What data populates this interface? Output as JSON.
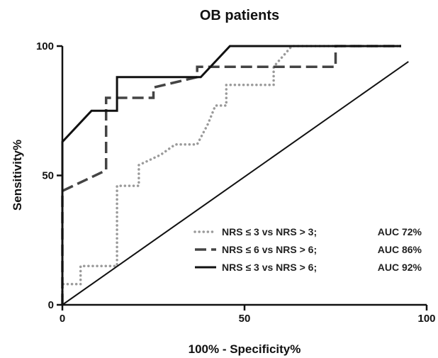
{
  "chart_data": {
    "type": "line",
    "title": "OB patients",
    "xlabel": "100% - Specificity%",
    "ylabel": "Sensitivity%",
    "xlim": [
      0,
      100
    ],
    "ylim": [
      0,
      100
    ],
    "xticks": [
      0,
      50,
      100
    ],
    "yticks": [
      0,
      50,
      100
    ],
    "legend_position": "bottom-right",
    "series": [
      {
        "name": "NRS  ≤ 3 vs NRS > 3;",
        "auc": "AUC 72%",
        "style": "dotted",
        "color": "#9a9a9a",
        "points": [
          [
            0,
            0
          ],
          [
            0,
            8
          ],
          [
            5,
            8
          ],
          [
            5,
            15
          ],
          [
            15,
            15
          ],
          [
            15,
            46
          ],
          [
            21,
            46
          ],
          [
            21,
            54
          ],
          [
            27,
            58
          ],
          [
            31,
            62
          ],
          [
            37,
            62
          ],
          [
            40,
            70
          ],
          [
            42,
            77
          ],
          [
            45,
            77
          ],
          [
            45,
            85
          ],
          [
            58,
            85
          ],
          [
            58,
            92
          ],
          [
            63,
            100
          ],
          [
            93,
            100
          ]
        ]
      },
      {
        "name": "NRS  ≤ 6 vs NRS > 6;",
        "auc": "AUC 86%",
        "style": "dashed",
        "color": "#444444",
        "points": [
          [
            0,
            0
          ],
          [
            0,
            44
          ],
          [
            12,
            52
          ],
          [
            12,
            80
          ],
          [
            25,
            80
          ],
          [
            25,
            84
          ],
          [
            37,
            88
          ],
          [
            37,
            92
          ],
          [
            75,
            92
          ],
          [
            75,
            100
          ],
          [
            93,
            100
          ]
        ]
      },
      {
        "name": "NRS  ≤ 3 vs NRS > 6;",
        "auc": "AUC 92%",
        "style": "solid",
        "color": "#111111",
        "points": [
          [
            0,
            0
          ],
          [
            0,
            63
          ],
          [
            8,
            75
          ],
          [
            15,
            75
          ],
          [
            15,
            88
          ],
          [
            38,
            88
          ],
          [
            46,
            100
          ],
          [
            93,
            100
          ]
        ]
      },
      {
        "name": "",
        "style": "solid",
        "color": "#111111",
        "points": [
          [
            0,
            0
          ],
          [
            95,
            94
          ]
        ]
      }
    ]
  }
}
